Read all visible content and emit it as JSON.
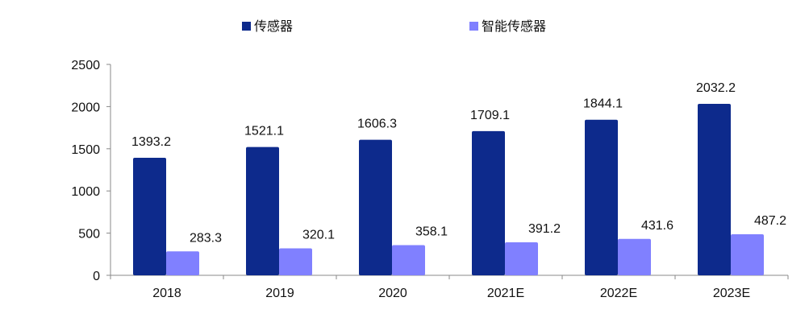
{
  "chart_data": {
    "type": "bar",
    "categories": [
      "2018",
      "2019",
      "2020",
      "2021E",
      "2022E",
      "2023E"
    ],
    "series": [
      {
        "name": "传感器",
        "values": [
          1393.2,
          1521.1,
          1606.3,
          1709.1,
          1844.1,
          2032.2
        ],
        "color": "#0d2a8c"
      },
      {
        "name": "智能传感器",
        "values": [
          283.3,
          320.1,
          358.1,
          391.2,
          431.6,
          487.2
        ],
        "color": "#8080ff"
      }
    ],
    "data_labels": [
      [
        "1393.2",
        "1521.1",
        "1606.3",
        "1709.1",
        "1844.1",
        "2032.2"
      ],
      [
        "283.3",
        "320.1",
        "358.1",
        "391.2",
        "431.6",
        "487.2"
      ]
    ],
    "yticks": [
      "0",
      "500",
      "1000",
      "1500",
      "2000",
      "2500"
    ],
    "ylim": [
      0,
      2500
    ],
    "legend_position": "top",
    "grid": false,
    "title": "",
    "xlabel": "",
    "ylabel": ""
  }
}
